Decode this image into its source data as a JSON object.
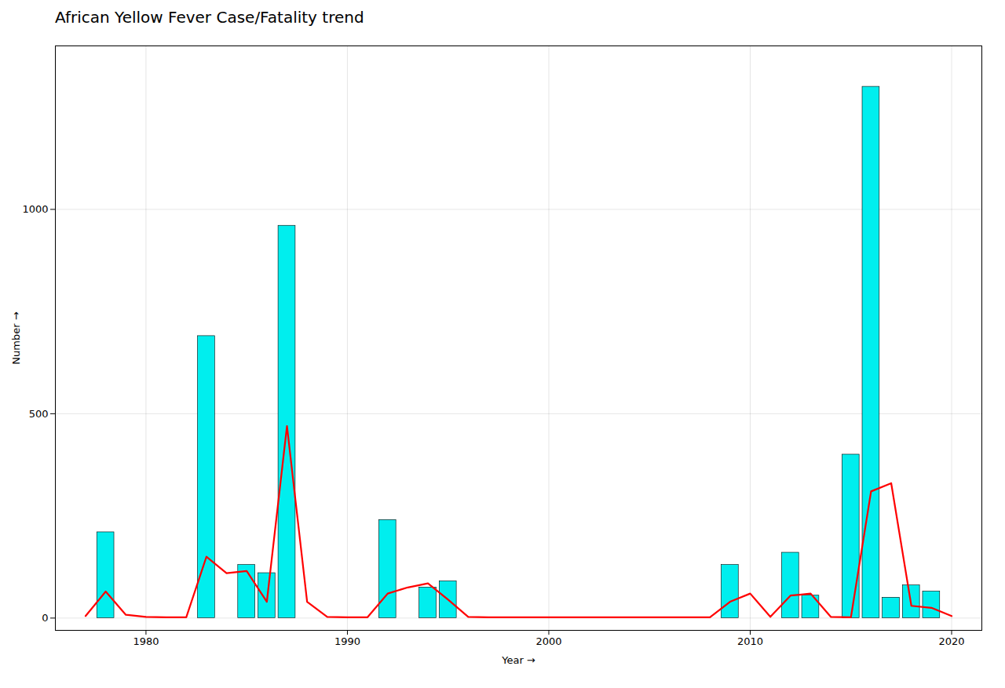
{
  "chart_data": {
    "type": "bar",
    "title": "African Yellow Fever Case/Fatality trend",
    "xlabel": "Year",
    "ylabel": "Number",
    "xlim": [
      1975.5,
      2021.5
    ],
    "ylim": [
      -30,
      1400
    ],
    "xticks": [
      1980,
      1990,
      2000,
      2010,
      2020
    ],
    "yticks": [
      0,
      500,
      1000
    ],
    "grid": true,
    "series": [
      {
        "type": "bar",
        "color": "#00EEEE",
        "x": [
          1978,
          1983,
          1985,
          1986,
          1987,
          1992,
          1994,
          1995,
          2009,
          2012,
          2013,
          2015,
          2016,
          2017,
          2018,
          2019
        ],
        "values": [
          210,
          690,
          130,
          110,
          960,
          240,
          75,
          90,
          130,
          160,
          55,
          400,
          1300,
          50,
          80,
          65
        ]
      },
      {
        "type": "line",
        "color": "#FF0000",
        "x": [
          1977,
          1978,
          1979,
          1980,
          1981,
          1982,
          1983,
          1984,
          1985,
          1986,
          1987,
          1988,
          1989,
          1990,
          1991,
          1992,
          1993,
          1994,
          1995,
          1996,
          1997,
          1998,
          1999,
          2000,
          2001,
          2002,
          2003,
          2004,
          2005,
          2006,
          2007,
          2008,
          2009,
          2010,
          2011,
          2012,
          2013,
          2014,
          2015,
          2016,
          2017,
          2018,
          2019,
          2020
        ],
        "values": [
          5,
          65,
          8,
          3,
          2,
          2,
          150,
          110,
          115,
          40,
          470,
          40,
          3,
          2,
          2,
          60,
          75,
          85,
          45,
          3,
          2,
          2,
          2,
          2,
          2,
          2,
          2,
          2,
          2,
          2,
          2,
          2,
          40,
          60,
          3,
          55,
          60,
          3,
          2,
          310,
          330,
          30,
          25,
          5
        ]
      }
    ]
  }
}
